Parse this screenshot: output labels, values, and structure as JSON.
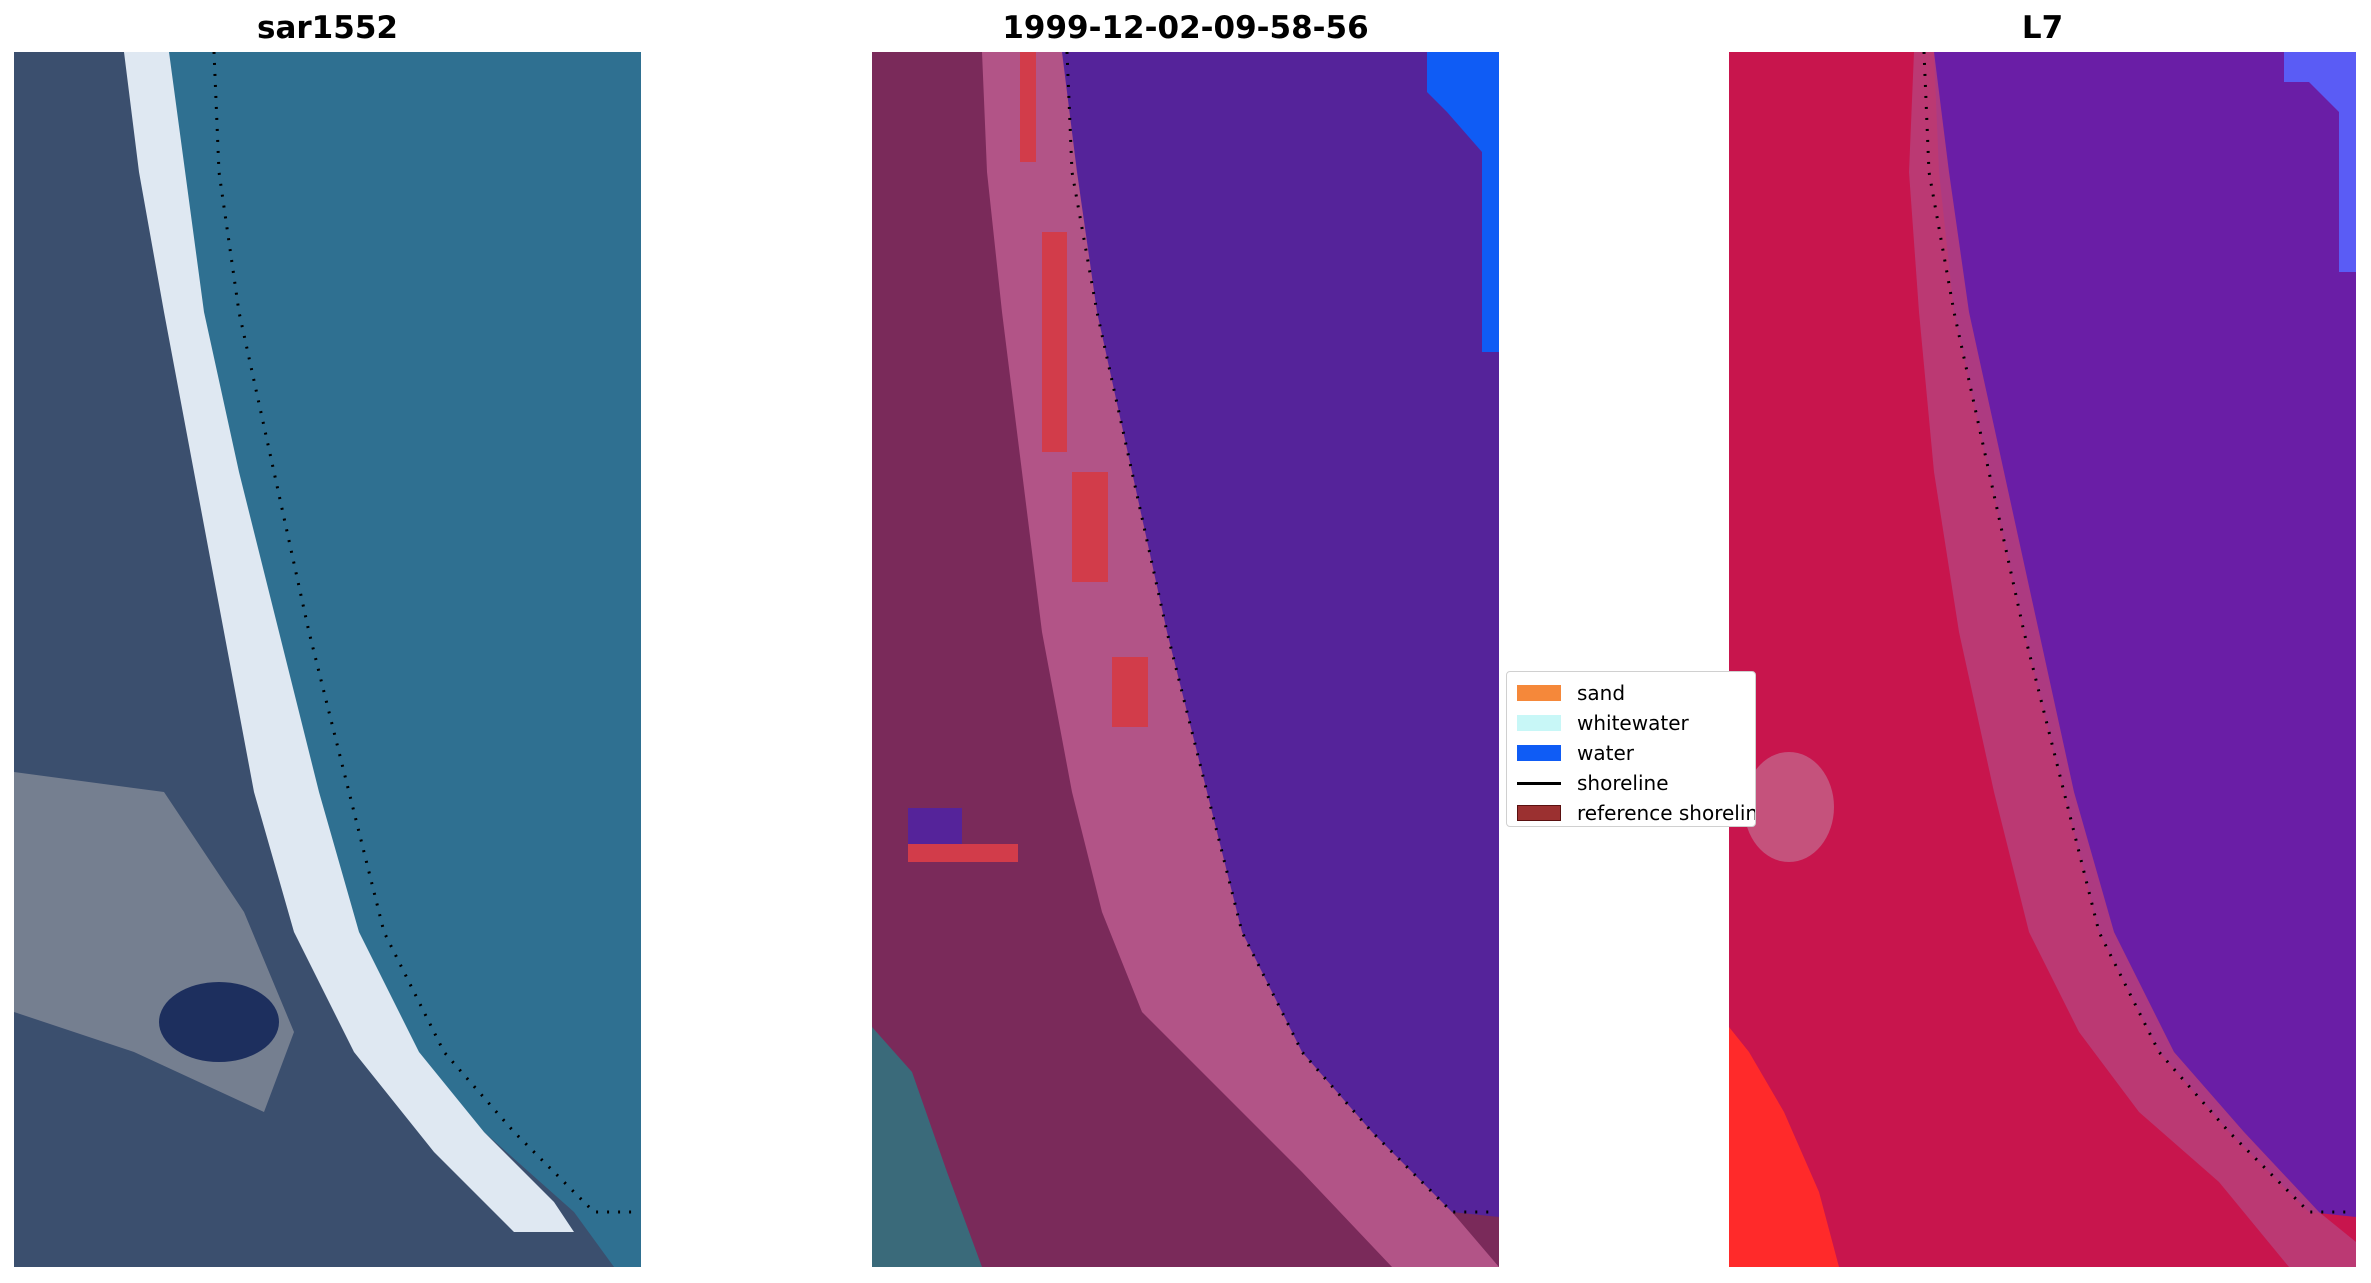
{
  "panels": [
    {
      "title": "sar1552"
    },
    {
      "title": "1999-12-02-09-58-56"
    },
    {
      "title": "L7"
    }
  ],
  "legend": {
    "items": [
      {
        "label": "sand",
        "color": "#f5883a"
      },
      {
        "label": "whitewater",
        "color": "#c8f7f7"
      },
      {
        "label": "water",
        "color": "#0f5cf5"
      },
      {
        "label": "shoreline",
        "color": "#000000"
      },
      {
        "label": "reference shoreline",
        "color": "#9b3030"
      }
    ]
  },
  "colors": {
    "sar_land": "#4d5d7a",
    "sar_sea": "#2f7091",
    "sar_surf": "#dfe8f2",
    "classified_land": "#7a2a5a",
    "classified_beach": "#b25487",
    "classified_sea": "#55239a",
    "classified_ref": "#d23c4a",
    "l7_land": "#c8154d",
    "l7_sea": "#6a1ea6",
    "l7_red": "#ff2a2a",
    "l7_blue": "#5a5cf5"
  }
}
